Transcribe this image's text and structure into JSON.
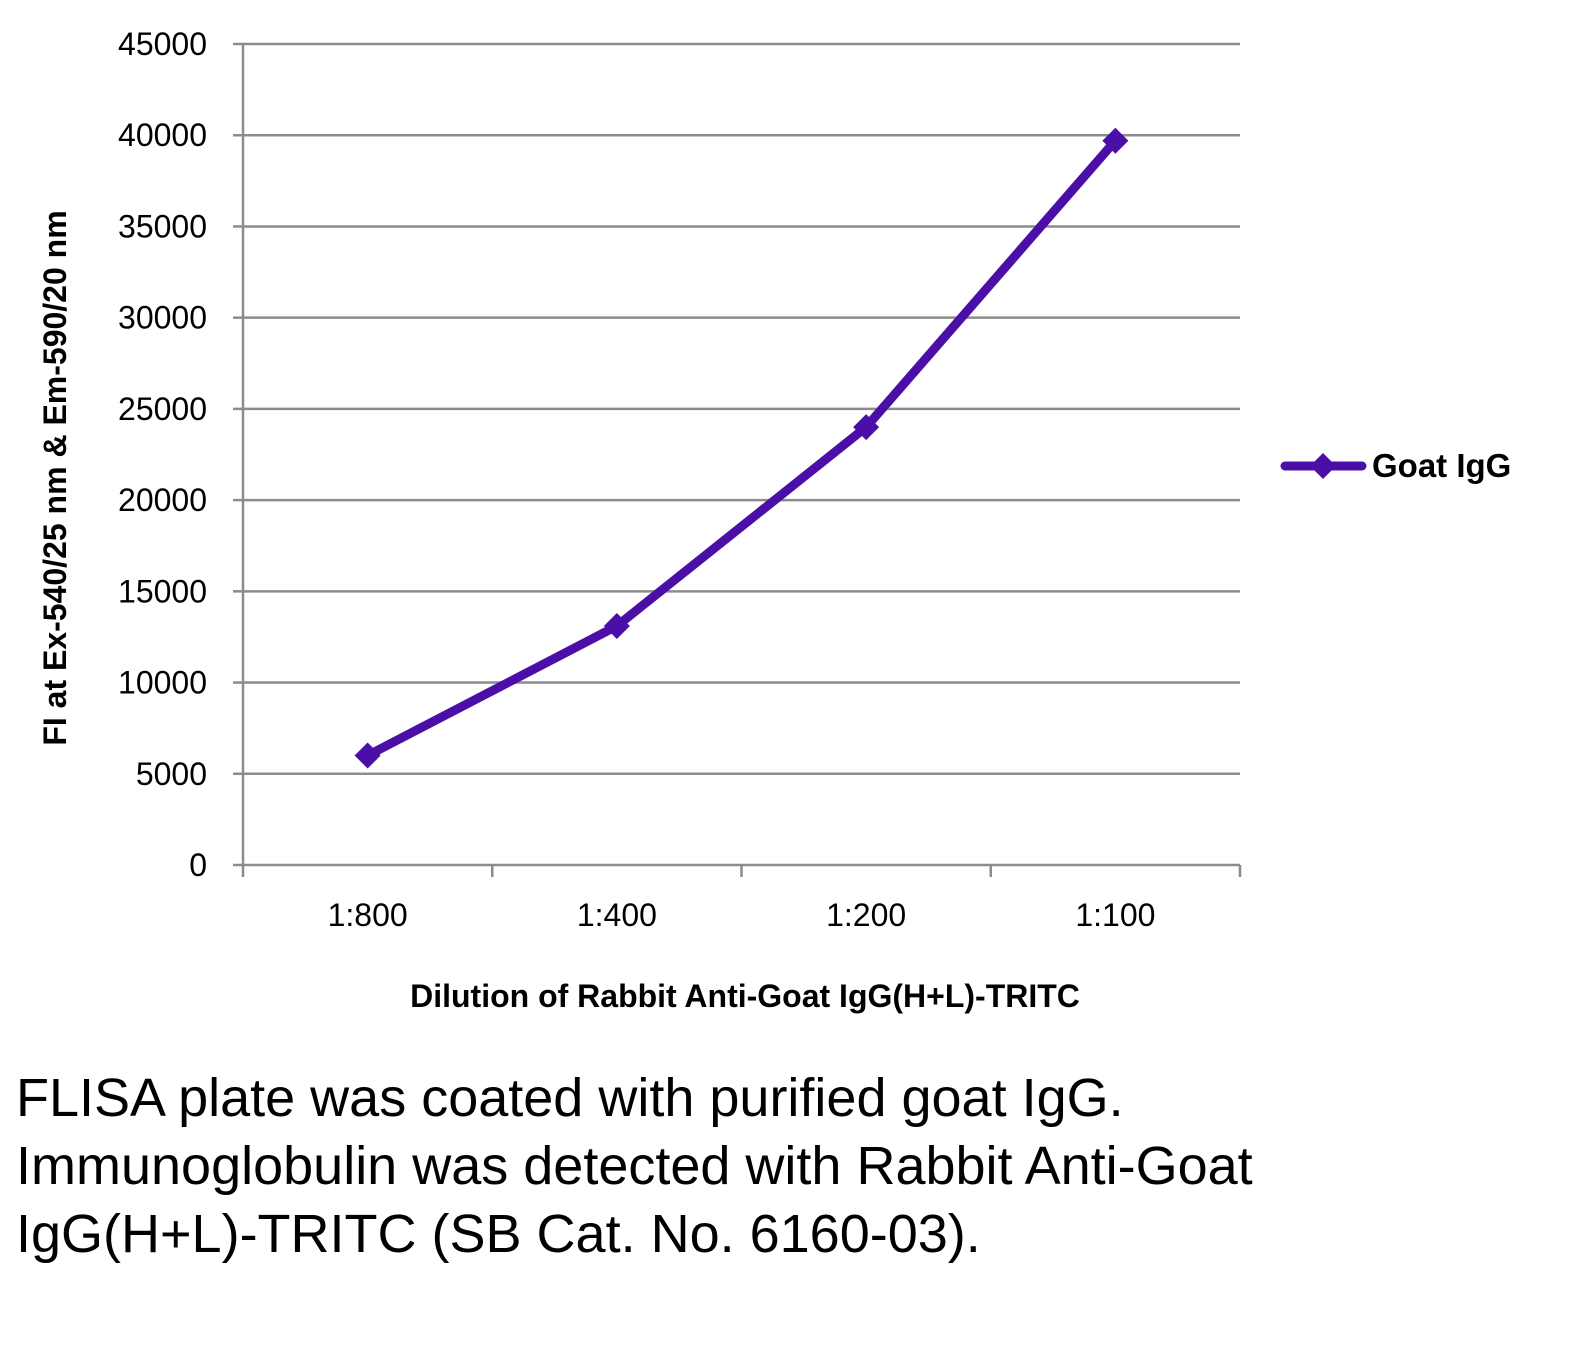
{
  "chart_data": {
    "type": "line",
    "title": "",
    "xlabel": "Dilution of Rabbit Anti-Goat IgG(H+L)-TRITC",
    "ylabel": "FI at Ex-540/25 nm & Em-590/20 nm",
    "categories": [
      "1:800",
      "1:400",
      "1:200",
      "1:100"
    ],
    "series": [
      {
        "name": "Goat IgG",
        "values": [
          6000,
          13100,
          24000,
          39700
        ],
        "color": "#4b0fa8",
        "marker": "diamond"
      }
    ],
    "ylim": [
      0,
      45000
    ],
    "ytick_step": 5000,
    "yticks": [
      "0",
      "5000",
      "10000",
      "15000",
      "20000",
      "25000",
      "30000",
      "35000",
      "40000",
      "45000"
    ],
    "grid": true,
    "legend_position": "right"
  },
  "caption": "FLISA plate was coated with purified goat IgG.  Immunoglobulin was detected with Rabbit Anti-Goat IgG(H+L)-TRITC (SB Cat. No. 6160-03)."
}
